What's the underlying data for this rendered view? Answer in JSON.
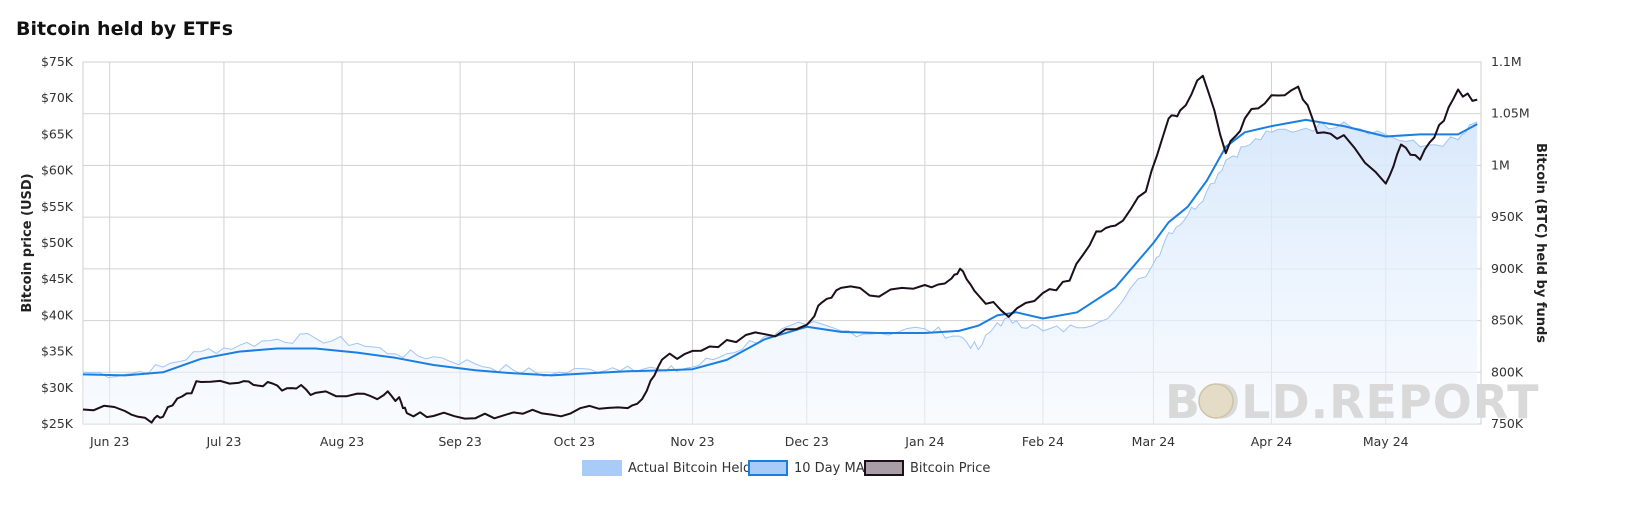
{
  "chart_data": {
    "type": "line",
    "title": "Bitcoin held by ETFs",
    "ylabel_left": "Bitcoin price (USD)",
    "ylabel_right": "Bitcoin (BTC) held by funds",
    "x_ticks": [
      "Jun 23",
      "Jul 23",
      "Aug 23",
      "Sep 23",
      "Oct 23",
      "Nov 23",
      "Dec 23",
      "Jan 24",
      "Feb 24",
      "Mar 24",
      "Apr 24",
      "May 24"
    ],
    "y_left_ticks": [
      "$25K",
      "$30K",
      "$35K",
      "$40K",
      "$45K",
      "$50K",
      "$55K",
      "$60K",
      "$65K",
      "$70K",
      "$75K"
    ],
    "y_left_range": [
      25000,
      75000
    ],
    "y_right_ticks": [
      "750K",
      "800K",
      "850K",
      "900K",
      "950K",
      "1M",
      "1.05M",
      "1.1M"
    ],
    "y_right_range": [
      750000,
      1100000
    ],
    "grid": true,
    "legend_position": "bottom",
    "watermark": "BOLD.REPORT",
    "x_range": [
      "2023-05-25",
      "2024-05-26"
    ],
    "series": [
      {
        "name": "Actual Bitcoin Held",
        "axis": "right",
        "color": "#9fc5f8",
        "x": [
          "2023-05-25",
          "2023-06-05",
          "2023-06-15",
          "2023-06-25",
          "2023-07-05",
          "2023-07-15",
          "2023-07-25",
          "2023-08-05",
          "2023-08-15",
          "2023-08-25",
          "2023-09-05",
          "2023-09-15",
          "2023-09-25",
          "2023-10-05",
          "2023-10-15",
          "2023-10-25",
          "2023-11-01",
          "2023-11-10",
          "2023-11-20",
          "2023-12-01",
          "2023-12-10",
          "2023-12-20",
          "2024-01-01",
          "2024-01-10",
          "2024-01-15",
          "2024-01-20",
          "2024-01-25",
          "2024-02-01",
          "2024-02-10",
          "2024-02-20",
          "2024-03-01",
          "2024-03-05",
          "2024-03-10",
          "2024-03-15",
          "2024-03-20",
          "2024-03-25",
          "2024-04-01",
          "2024-04-10",
          "2024-04-20",
          "2024-05-01",
          "2024-05-10",
          "2024-05-20",
          "2024-05-25"
        ],
        "values": [
          800000,
          798000,
          805000,
          820000,
          826000,
          832000,
          833000,
          828000,
          818000,
          815000,
          808000,
          802000,
          798000,
          803000,
          806000,
          801000,
          805000,
          818000,
          835000,
          846000,
          840000,
          838000,
          842000,
          835000,
          822000,
          848000,
          850000,
          840000,
          843000,
          860000,
          905000,
          935000,
          952000,
          975000,
          1005000,
          1018000,
          1032000,
          1036000,
          1042000,
          1030000,
          1018000,
          1025000,
          1042000
        ]
      },
      {
        "name": "10 Day MA",
        "axis": "right",
        "color": "#1a7fe0",
        "x": [
          "2023-05-25",
          "2023-06-05",
          "2023-06-15",
          "2023-06-25",
          "2023-07-05",
          "2023-07-15",
          "2023-07-25",
          "2023-08-05",
          "2023-08-15",
          "2023-08-25",
          "2023-09-05",
          "2023-09-15",
          "2023-09-25",
          "2023-10-05",
          "2023-10-15",
          "2023-10-25",
          "2023-11-01",
          "2023-11-10",
          "2023-11-20",
          "2023-12-01",
          "2023-12-10",
          "2023-12-20",
          "2024-01-01",
          "2024-01-10",
          "2024-01-15",
          "2024-01-20",
          "2024-01-25",
          "2024-02-01",
          "2024-02-10",
          "2024-02-20",
          "2024-03-01",
          "2024-03-05",
          "2024-03-10",
          "2024-03-15",
          "2024-03-20",
          "2024-03-25",
          "2024-04-01",
          "2024-04-10",
          "2024-04-20",
          "2024-05-01",
          "2024-05-10",
          "2024-05-20",
          "2024-05-25"
        ],
        "values": [
          798000,
          797000,
          800000,
          813000,
          820000,
          823000,
          823000,
          819000,
          814000,
          807000,
          802000,
          799000,
          797000,
          799000,
          801000,
          802000,
          803000,
          812000,
          832000,
          844000,
          839000,
          838000,
          838000,
          840000,
          845000,
          855000,
          858000,
          852000,
          858000,
          882000,
          925000,
          945000,
          960000,
          985000,
          1018000,
          1032000,
          1038000,
          1044000,
          1038000,
          1028000,
          1030000,
          1030000,
          1040000
        ]
      },
      {
        "name": "Bitcoin Price",
        "axis": "left",
        "color": "#1c0e1b",
        "x": [
          "2023-05-25",
          "2023-06-05",
          "2023-06-12",
          "2023-06-15",
          "2023-06-20",
          "2023-06-25",
          "2023-07-05",
          "2023-07-10",
          "2023-07-15",
          "2023-07-20",
          "2023-07-25",
          "2023-08-05",
          "2023-08-12",
          "2023-08-16",
          "2023-08-18",
          "2023-08-25",
          "2023-09-05",
          "2023-09-15",
          "2023-09-25",
          "2023-10-05",
          "2023-10-15",
          "2023-10-20",
          "2023-10-24",
          "2023-11-01",
          "2023-11-10",
          "2023-11-20",
          "2023-12-01",
          "2023-12-05",
          "2023-12-10",
          "2023-12-20",
          "2024-01-01",
          "2024-01-08",
          "2024-01-11",
          "2024-01-15",
          "2024-01-23",
          "2024-02-01",
          "2024-02-08",
          "2024-02-15",
          "2024-02-20",
          "2024-02-28",
          "2024-03-05",
          "2024-03-08",
          "2024-03-14",
          "2024-03-20",
          "2024-03-25",
          "2024-04-01",
          "2024-04-08",
          "2024-04-13",
          "2024-04-20",
          "2024-05-01",
          "2024-05-05",
          "2024-05-10",
          "2024-05-15",
          "2024-05-20",
          "2024-05-25"
        ],
        "values": [
          27000,
          26800,
          25200,
          26000,
          28800,
          30800,
          30700,
          30300,
          30300,
          29900,
          29300,
          29200,
          29000,
          28700,
          26500,
          26100,
          25800,
          26600,
          26300,
          27500,
          27200,
          29600,
          33900,
          35100,
          36600,
          37400,
          38700,
          41800,
          43800,
          42600,
          44200,
          45100,
          46100,
          42800,
          39800,
          43100,
          44800,
          51600,
          52400,
          57100,
          67200,
          68300,
          73100,
          62400,
          67200,
          70400,
          71600,
          65200,
          64900,
          58200,
          63600,
          61500,
          66300,
          71200,
          69800
        ]
      }
    ],
    "legend": [
      {
        "label": "Actual Bitcoin Held",
        "fill": "#a8cbf7",
        "stroke": "#a8cbf7"
      },
      {
        "label": "10 Day MA",
        "fill": "#a8cbf7",
        "stroke": "#1a7fe0"
      },
      {
        "label": "Bitcoin Price",
        "fill": "#a79ea6",
        "stroke": "#1c0e1b"
      }
    ]
  }
}
